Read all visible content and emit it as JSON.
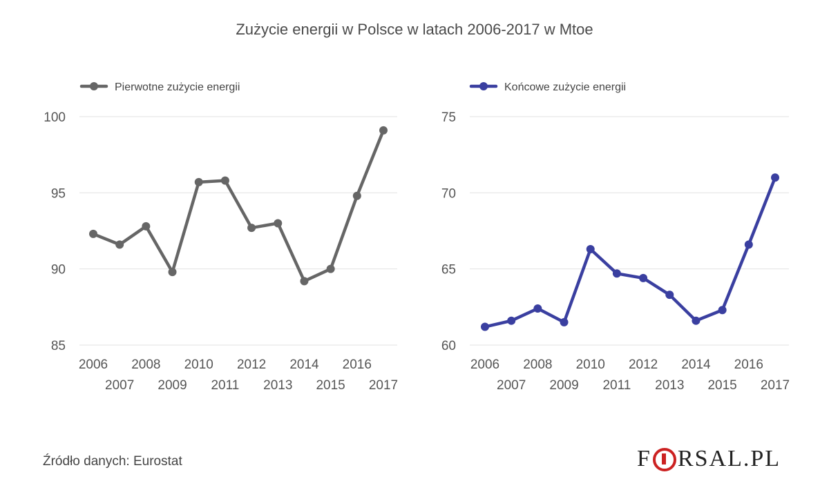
{
  "title": "Zużycie energii w Polsce w latach 2006-2017 w Mtoe",
  "source": "Źródło danych: Eurostat",
  "logo": {
    "left": "F",
    "right": "RSAL.PL"
  },
  "chart_data": [
    {
      "type": "line",
      "color": "#666666",
      "categories": [
        "2006",
        "2007",
        "2008",
        "2009",
        "2010",
        "2011",
        "2012",
        "2013",
        "2014",
        "2015",
        "2016",
        "2017"
      ],
      "series": [
        {
          "name": "Pierwotne zużycie energii",
          "values": [
            92.3,
            91.6,
            92.8,
            89.8,
            95.7,
            95.8,
            92.7,
            93.0,
            89.2,
            90.0,
            94.8,
            99.1
          ]
        }
      ],
      "yticks": [
        85,
        90,
        95,
        100
      ],
      "ylim": [
        85,
        100
      ],
      "grid": true,
      "legend": "top-left"
    },
    {
      "type": "line",
      "color": "#3a3fa0",
      "categories": [
        "2006",
        "2007",
        "2008",
        "2009",
        "2010",
        "2011",
        "2012",
        "2013",
        "2014",
        "2015",
        "2016",
        "2017"
      ],
      "series": [
        {
          "name": "Końcowe zużycie energii",
          "values": [
            61.2,
            61.6,
            62.4,
            61.5,
            66.3,
            64.7,
            64.4,
            63.3,
            61.6,
            62.3,
            66.6,
            71.0
          ]
        }
      ],
      "yticks": [
        60,
        65,
        70,
        75
      ],
      "ylim": [
        60,
        75
      ],
      "grid": true,
      "legend": "top-left"
    }
  ]
}
